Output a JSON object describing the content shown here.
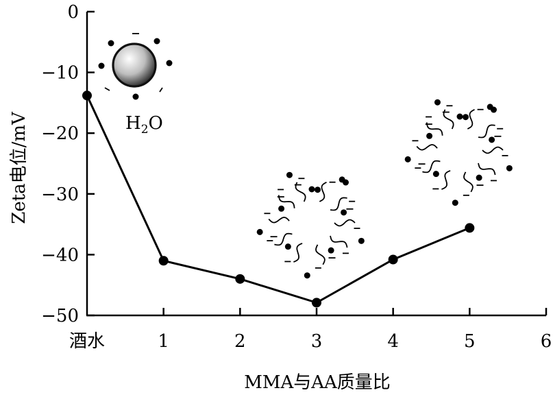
{
  "chart_data": {
    "type": "line",
    "xlabel": "MMA与AA质量比",
    "ylabel": "Zeta电位/mV",
    "x_ticks": [
      "酒水",
      "1",
      "2",
      "3",
      "4",
      "5",
      "6"
    ],
    "y_ticks": [
      "0",
      "−10",
      "−20",
      "−30",
      "−40",
      "−50"
    ],
    "xlim": [
      0,
      6
    ],
    "ylim": [
      -50,
      0
    ],
    "x": [
      0,
      1,
      2,
      3,
      4,
      5
    ],
    "values": [
      -13.8,
      -41.0,
      -44.0,
      -47.9,
      -40.8,
      -35.6
    ],
    "grid": false,
    "legend": "none",
    "annotations": {
      "water_label_main": "H",
      "water_label_sub": "2",
      "water_label_end": "O"
    },
    "colors": {
      "line": "#000000",
      "particle_light": "#ffffff",
      "particle_dark": "#2a2a2a"
    }
  }
}
